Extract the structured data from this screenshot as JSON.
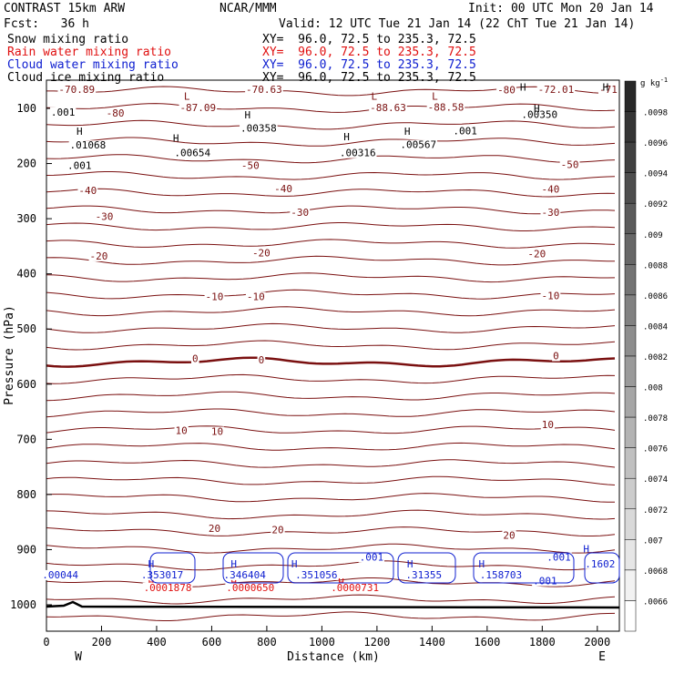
{
  "header": {
    "model": "CONTRAST 15km ARW",
    "org": "NCAR/MMM",
    "init": "Init: 00 UTC Mon 20 Jan 14",
    "fcst": "Fcst:   36 h",
    "valid": "Valid: 12 UTC Tue 21 Jan 14 (22 ChT Tue 21 Jan 14)",
    "fields": [
      {
        "name": "Snow mixing ratio",
        "xy": "XY=  96.0, 72.5 to 235.3, 72.5",
        "color": "#000000"
      },
      {
        "name": "Rain water mixing ratio",
        "xy": "XY=  96.0, 72.5 to 235.3, 72.5",
        "color": "#e01010"
      },
      {
        "name": "Cloud water mixing ratio",
        "xy": "XY=  96.0, 72.5 to 235.3, 72.5",
        "color": "#1020d0"
      },
      {
        "name": "Cloud ice mixing ratio",
        "xy": "XY=  96.0, 72.5 to 235.3, 72.5",
        "color": "#000000"
      }
    ]
  },
  "chart_data": {
    "type": "contour-cross-section",
    "xlabel": "Distance (km)",
    "ylabel": "Pressure (hPa)",
    "xlim": [
      0,
      2080
    ],
    "ylim": [
      1040,
      50
    ],
    "xticks": [
      0,
      200,
      400,
      600,
      800,
      1000,
      1200,
      1400,
      1600,
      1800,
      2000
    ],
    "yticks": [
      100,
      200,
      300,
      400,
      500,
      600,
      700,
      800,
      900,
      1000
    ],
    "x_end_labels": {
      "left": "W",
      "right": "E"
    },
    "colorbar": {
      "units": "g kg",
      "units_exp": "-1",
      "ticks": [
        ".0098",
        ".0096",
        ".0094",
        ".0092",
        ".009",
        ".0088",
        ".0086",
        ".0084",
        ".0082",
        ".008",
        ".0078",
        ".0076",
        ".0074",
        ".0072",
        ".007",
        ".0068",
        ".0066"
      ]
    },
    "temperature_contour_labels": [
      {
        "text": "-70.89",
        "x": 110,
        "p": 72
      },
      {
        "text": "-70.63",
        "x": 790,
        "p": 72
      },
      {
        "text": "-80",
        "x": 1670,
        "p": 73
      },
      {
        "text": "-72.01",
        "x": 1850,
        "p": 72
      },
      {
        "text": "-71",
        "x": 2040,
        "p": 72
      },
      {
        "text": "-87.09",
        "x": 550,
        "p": 105
      },
      {
        "text": "-88.63",
        "x": 1240,
        "p": 105
      },
      {
        "text": "-88.58",
        "x": 1450,
        "p": 104
      },
      {
        "text": "-80",
        "x": 250,
        "p": 115
      },
      {
        "text": "-50",
        "x": 740,
        "p": 210
      },
      {
        "text": "-50",
        "x": 1900,
        "p": 208
      },
      {
        "text": "-40",
        "x": 150,
        "p": 255
      },
      {
        "text": "-40",
        "x": 860,
        "p": 252
      },
      {
        "text": "-40",
        "x": 1830,
        "p": 253
      },
      {
        "text": "-30",
        "x": 210,
        "p": 302
      },
      {
        "text": "-30",
        "x": 920,
        "p": 295
      },
      {
        "text": "-30",
        "x": 1830,
        "p": 295
      },
      {
        "text": "-20",
        "x": 190,
        "p": 374
      },
      {
        "text": "-20",
        "x": 780,
        "p": 368
      },
      {
        "text": "-20",
        "x": 1780,
        "p": 370
      },
      {
        "text": "-10",
        "x": 610,
        "p": 448
      },
      {
        "text": "-10",
        "x": 760,
        "p": 448
      },
      {
        "text": "-10",
        "x": 1830,
        "p": 446
      },
      {
        "text": "0",
        "x": 540,
        "p": 560
      },
      {
        "text": "0",
        "x": 780,
        "p": 562
      },
      {
        "text": "0",
        "x": 1850,
        "p": 555
      },
      {
        "text": "10",
        "x": 490,
        "p": 690
      },
      {
        "text": "10",
        "x": 620,
        "p": 692
      },
      {
        "text": "10",
        "x": 1820,
        "p": 680
      },
      {
        "text": "20",
        "x": 610,
        "p": 868
      },
      {
        "text": "20",
        "x": 840,
        "p": 870
      },
      {
        "text": "20",
        "x": 1680,
        "p": 880
      }
    ],
    "cloud_ice_labels": [
      {
        "text": ".001",
        "x": 60,
        "p": 113
      },
      {
        "text": ".01068",
        "x": 150,
        "p": 173
      },
      {
        "text": ".001",
        "x": 120,
        "p": 210
      },
      {
        "text": ".00654",
        "x": 530,
        "p": 187
      },
      {
        "text": ".00358",
        "x": 770,
        "p": 142
      },
      {
        "text": ".00316",
        "x": 1130,
        "p": 187
      },
      {
        "text": ".00567",
        "x": 1350,
        "p": 172
      },
      {
        "text": ".001",
        "x": 1520,
        "p": 147
      },
      {
        "text": ".00350",
        "x": 1790,
        "p": 117
      }
    ],
    "extrema_marks": [
      {
        "text": "H",
        "x": 120,
        "p": 148,
        "color": "#000000"
      },
      {
        "text": "H",
        "x": 470,
        "p": 160,
        "color": "#000000"
      },
      {
        "text": "H",
        "x": 730,
        "p": 118,
        "color": "#000000"
      },
      {
        "text": "H",
        "x": 1090,
        "p": 158,
        "color": "#000000"
      },
      {
        "text": "H",
        "x": 1310,
        "p": 148,
        "color": "#000000"
      },
      {
        "text": "H",
        "x": 1780,
        "p": 107,
        "color": "#000000"
      },
      {
        "text": "H",
        "x": 1730,
        "p": 68,
        "color": "#000000"
      },
      {
        "text": "H",
        "x": 2030,
        "p": 68,
        "color": "#000000"
      },
      {
        "text": "L",
        "x": 510,
        "p": 84,
        "color": "#7a1010"
      },
      {
        "text": "L",
        "x": 1190,
        "p": 84,
        "color": "#7a1010"
      },
      {
        "text": "L",
        "x": 1410,
        "p": 84,
        "color": "#7a1010"
      },
      {
        "text": "H",
        "x": 380,
        "p": 932,
        "color": "#1020d0"
      },
      {
        "text": "H",
        "x": 680,
        "p": 932,
        "color": "#1020d0"
      },
      {
        "text": "H",
        "x": 900,
        "p": 932,
        "color": "#1020d0"
      },
      {
        "text": "H",
        "x": 1320,
        "p": 932,
        "color": "#1020d0"
      },
      {
        "text": "H",
        "x": 1580,
        "p": 932,
        "color": "#1020d0"
      },
      {
        "text": "H",
        "x": 1960,
        "p": 905,
        "color": "#1020d0"
      },
      {
        "text": "H",
        "x": 380,
        "p": 965,
        "color": "#e01010"
      },
      {
        "text": "H",
        "x": 680,
        "p": 965,
        "color": "#e01010"
      },
      {
        "text": "H",
        "x": 1070,
        "p": 965,
        "color": "#e01010"
      }
    ],
    "cloud_water_labels": [
      {
        "text": ".00044",
        "x": 50,
        "p": 952
      },
      {
        "text": ".353017",
        "x": 420,
        "p": 952
      },
      {
        "text": ".346404",
        "x": 720,
        "p": 952
      },
      {
        "text": ".351056",
        "x": 980,
        "p": 952
      },
      {
        "text": ".001",
        "x": 1180,
        "p": 920
      },
      {
        "text": ".31355",
        "x": 1370,
        "p": 952
      },
      {
        "text": ".158703",
        "x": 1650,
        "p": 952
      },
      {
        "text": ".001",
        "x": 1810,
        "p": 963
      },
      {
        "text": ".001",
        "x": 1860,
        "p": 920
      },
      {
        "text": ".1602",
        "x": 2010,
        "p": 932
      }
    ],
    "rain_water_labels": [
      {
        "text": ".0001878",
        "x": 440,
        "p": 975
      },
      {
        "text": ".0000650",
        "x": 740,
        "p": 975
      },
      {
        "text": ".0000731",
        "x": 1120,
        "p": 975
      }
    ]
  }
}
